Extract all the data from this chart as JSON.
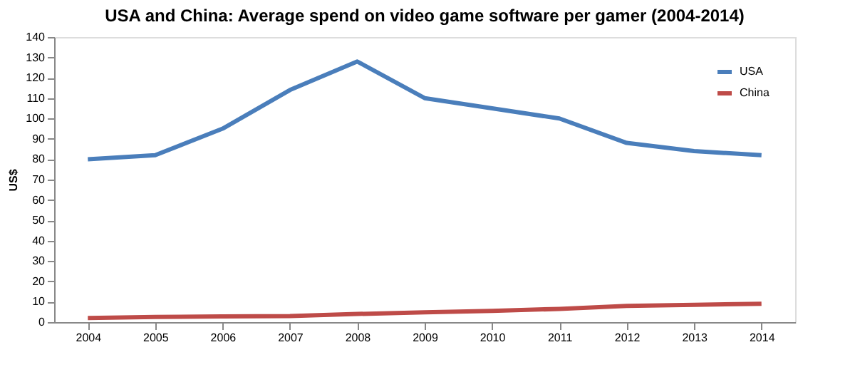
{
  "chart_data": {
    "type": "line",
    "title": "USA and China: Average spend on video game software per gamer (2004-2014)",
    "ylabel": "US$",
    "categories": [
      "2004",
      "2005",
      "2006",
      "2007",
      "2008",
      "2009",
      "2010",
      "2011",
      "2012",
      "2013",
      "2014"
    ],
    "series": [
      {
        "name": "USA",
        "color": "#4a7ebb",
        "values": [
          80,
          82,
          95,
          114,
          128,
          110,
          105,
          100,
          88,
          84,
          82
        ]
      },
      {
        "name": "China",
        "color": "#be4b48",
        "values": [
          2,
          2.5,
          2.8,
          3,
          4,
          4.8,
          5.5,
          6.5,
          8,
          8.5,
          9
        ]
      }
    ],
    "ylim": [
      0,
      140
    ],
    "yticks": [
      0,
      10,
      20,
      30,
      40,
      50,
      60,
      70,
      80,
      90,
      100,
      110,
      120,
      130,
      140
    ],
    "grid": false,
    "legend": "top right",
    "marker": "none",
    "line_style": "solid"
  }
}
